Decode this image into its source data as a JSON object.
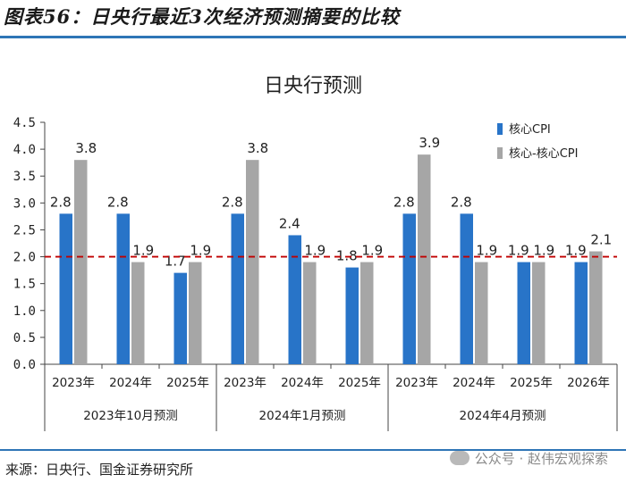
{
  "header": {
    "title": "图表56：日央行最近3次经济预测摘要的比较"
  },
  "footer": {
    "source": "来源：日央行、国金证券研究所",
    "watermark": "公众号 · 赵伟宏观探索"
  },
  "colors": {
    "series1": "#2874c8",
    "series2": "#a6a6a6",
    "refline": "#c00000",
    "rule": "#2e75b6"
  },
  "chart_data": {
    "type": "bar",
    "title": "日央行预测",
    "xlabel": "",
    "ylabel": "",
    "ylim": [
      0,
      4.5
    ],
    "yticks": [
      "0.0",
      "0.5",
      "1.0",
      "1.5",
      "2.0",
      "2.5",
      "3.0",
      "3.5",
      "4.0",
      "4.5"
    ],
    "legend_position": "top-right",
    "groups": [
      {
        "label": "2023年10月预测",
        "categories": [
          "2023年",
          "2024年",
          "2025年"
        ]
      },
      {
        "label": "2024年1月预测",
        "categories": [
          "2023年",
          "2024年",
          "2025年"
        ]
      },
      {
        "label": "2024年4月预测",
        "categories": [
          "2023年",
          "2024年",
          "2025年",
          "2026年"
        ]
      }
    ],
    "series": [
      {
        "name": "核心CPI",
        "values": [
          2.8,
          2.8,
          1.7,
          2.8,
          2.4,
          1.8,
          2.8,
          2.8,
          1.9,
          1.9
        ],
        "labels": [
          "2.8",
          "2.8",
          "1.7",
          "2.8",
          "2.4",
          "1.8",
          "2.8",
          "2.8",
          "1.9",
          "1.9"
        ]
      },
      {
        "name": "核心-核心CPI",
        "values": [
          3.8,
          1.9,
          1.9,
          3.8,
          1.9,
          1.9,
          3.9,
          1.9,
          1.9,
          2.1
        ],
        "labels": [
          "3.8",
          "1.9",
          "1.9",
          "3.8",
          "1.9",
          "1.9",
          "3.9",
          "1.9",
          "1.9",
          "2.1"
        ]
      }
    ],
    "reference_line": {
      "value": 2.0,
      "style": "dashed"
    }
  }
}
